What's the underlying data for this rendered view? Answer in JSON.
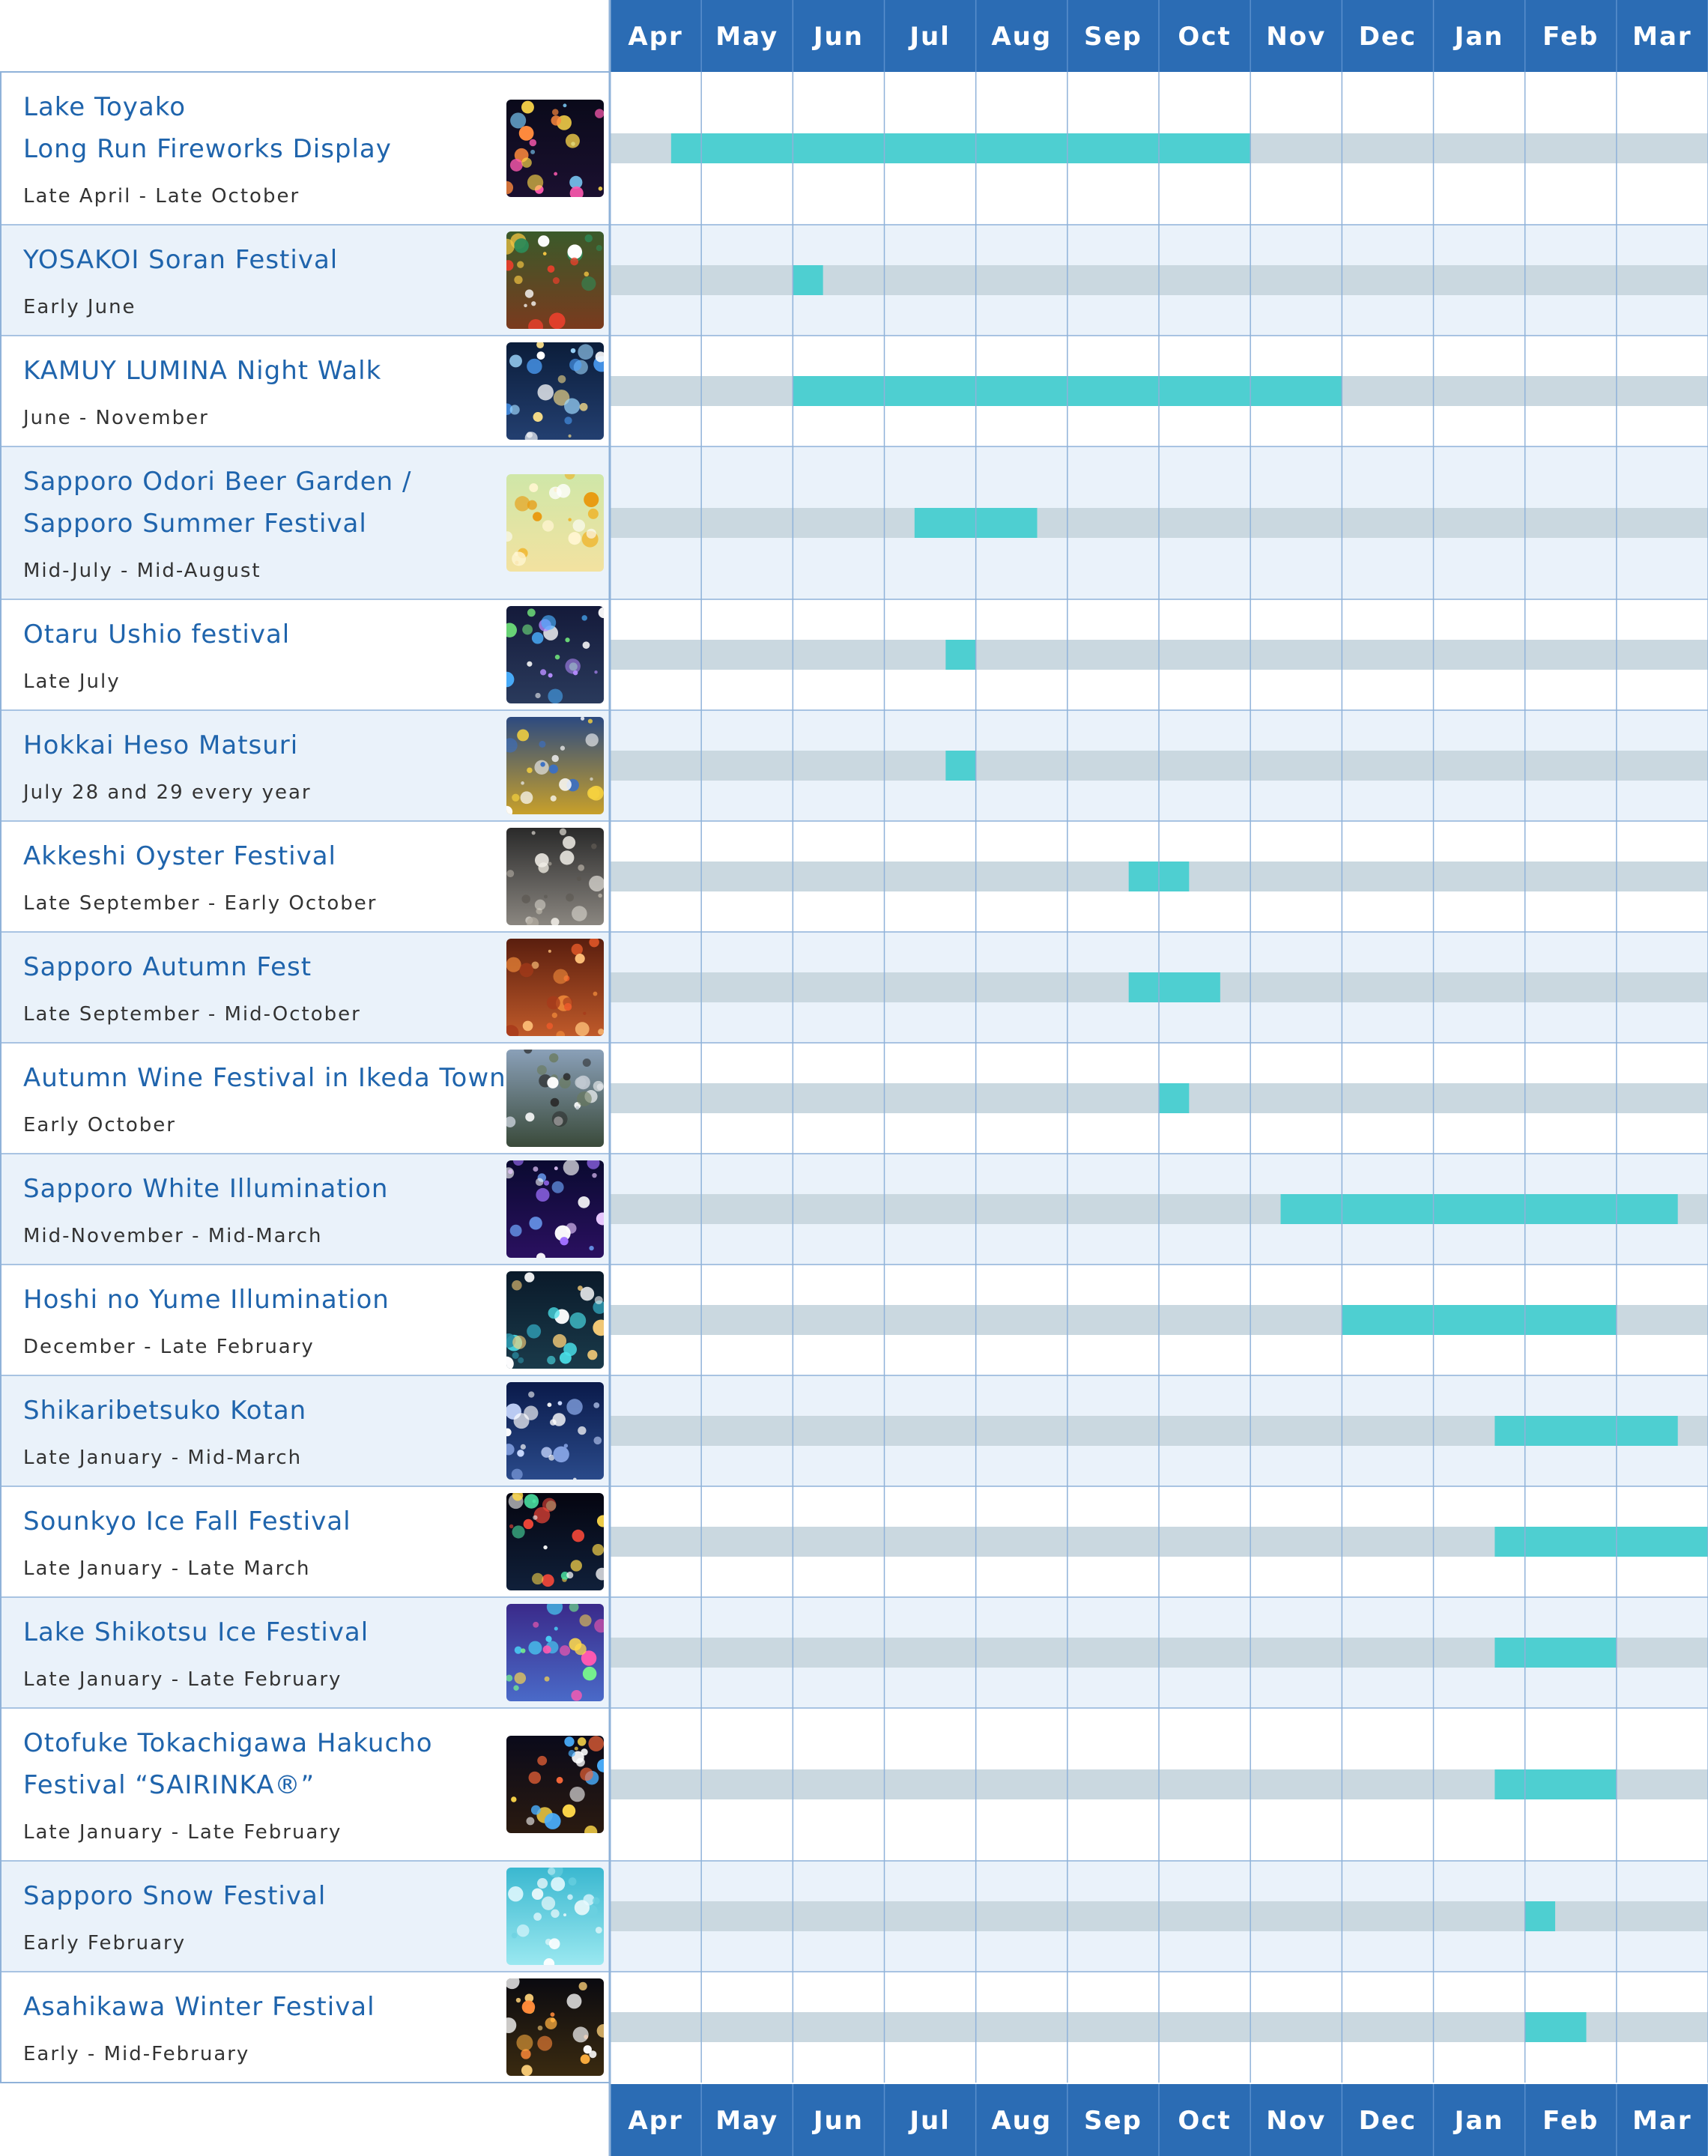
{
  "colors": {
    "header": "#2b6cb4",
    "row_alt": "#eaf2fa",
    "row": "#ffffff",
    "grid": "#8fb2d9",
    "track": "#cad8e0",
    "bar": "#4ecfd1",
    "name": "#1f64ac",
    "date": "#333333"
  },
  "chart_data": {
    "type": "bar",
    "title": "",
    "months": [
      "Apr",
      "May",
      "Jun",
      "Jul",
      "Aug",
      "Sep",
      "Oct",
      "Nov",
      "Dec",
      "Jan",
      "Feb",
      "Mar"
    ],
    "events": [
      {
        "name": [
          "Lake Toyako",
          "Long Run Fireworks Display"
        ],
        "dates": "Late April - Late October",
        "start": 0.67,
        "end": 7.0,
        "thumb": "fireworks"
      },
      {
        "name": [
          "YOSAKOI Soran Festival"
        ],
        "dates": "Early June",
        "start": 2.0,
        "end": 2.33,
        "thumb": "dancers"
      },
      {
        "name": [
          "KAMUY LUMINA Night Walk"
        ],
        "dates": "June - November",
        "start": 2.0,
        "end": 8.0,
        "thumb": "forest-lights"
      },
      {
        "name": [
          "Sapporo Odori Beer Garden /",
          "Sapporo Summer Festival"
        ],
        "dates": "Mid-July - Mid-August",
        "start": 3.33,
        "end": 4.67,
        "thumb": "beer"
      },
      {
        "name": [
          "Otaru Ushio festival"
        ],
        "dates": "Late July",
        "start": 3.67,
        "end": 4.0,
        "thumb": "fireworks-town"
      },
      {
        "name": [
          "Hokkai Heso Matsuri"
        ],
        "dates": "July 28 and 29 every year",
        "start": 3.67,
        "end": 4.0,
        "thumb": "crowd-festival"
      },
      {
        "name": [
          "Akkeshi Oyster Festival"
        ],
        "dates": "Late September - Early October",
        "start": 5.67,
        "end": 6.33,
        "thumb": "oyster"
      },
      {
        "name": [
          "Sapporo Autumn Fest"
        ],
        "dates": "Late September - Mid-October",
        "start": 5.67,
        "end": 6.67,
        "thumb": "food"
      },
      {
        "name": [
          "Autumn Wine Festival in Ikeda Town"
        ],
        "dates": "Early October",
        "start": 6.0,
        "end": 6.33,
        "thumb": "crowd-outdoor"
      },
      {
        "name": [
          "Sapporo White Illumination"
        ],
        "dates": "Mid-November - Mid-March",
        "start": 7.33,
        "end": 11.67,
        "thumb": "illumination"
      },
      {
        "name": [
          "Hoshi no Yume Illumination"
        ],
        "dates": "December - Late February",
        "start": 8.0,
        "end": 11.0,
        "thumb": "night-aerial"
      },
      {
        "name": [
          "Shikaribetsuko Kotan"
        ],
        "dates": "Late January - Mid-March",
        "start": 9.67,
        "end": 11.67,
        "thumb": "starry-sky"
      },
      {
        "name": [
          "Sounkyo Ice Fall Festival"
        ],
        "dates": "Late January - Late March",
        "start": 9.67,
        "end": 12.0,
        "thumb": "ice-fireworks"
      },
      {
        "name": [
          "Lake Shikotsu Ice Festival"
        ],
        "dates": "Late January - Late February",
        "start": 9.67,
        "end": 11.0,
        "thumb": "ice-colors"
      },
      {
        "name": [
          "Otofuke Tokachigawa Hakucho",
          "Festival “SAIRINKA®”"
        ],
        "dates": "Late January - Late February",
        "start": 9.67,
        "end": 11.0,
        "thumb": "ice-cones"
      },
      {
        "name": [
          "Sapporo Snow Festival"
        ],
        "dates": "Early February",
        "start": 10.0,
        "end": 10.33,
        "thumb": "snow-sculpture"
      },
      {
        "name": [
          "Asahikawa Winter Festival"
        ],
        "dates": "Early - Mid-February",
        "start": 10.0,
        "end": 10.67,
        "thumb": "winter-fireworks"
      }
    ]
  }
}
